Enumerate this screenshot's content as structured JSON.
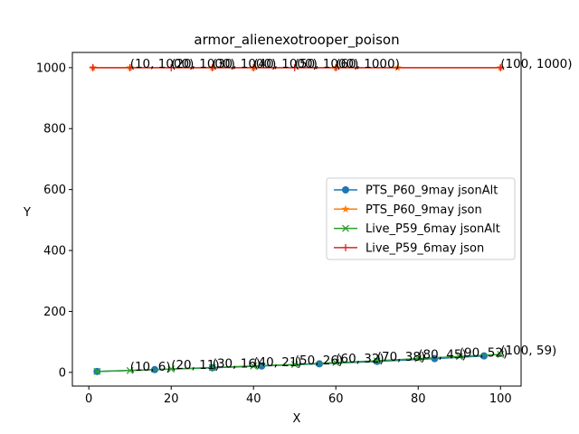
{
  "chart_data": {
    "type": "line",
    "title": "armor_alienexotrooper_poison",
    "xlabel": "X",
    "ylabel": "Y",
    "xlim": [
      -4,
      105
    ],
    "ylim": [
      -45,
      1050
    ],
    "xticks": [
      0,
      20,
      40,
      60,
      80,
      100
    ],
    "yticks": [
      0,
      200,
      400,
      600,
      800,
      1000
    ],
    "grid": false,
    "legend_position": "center-right",
    "series": [
      {
        "name": "PTS_P60_9may jsonAlt",
        "color": "#1f77b4",
        "marker": "circle",
        "points": [
          [
            2,
            3
          ],
          [
            16,
            9
          ],
          [
            30,
            15
          ],
          [
            42,
            21
          ],
          [
            56,
            28
          ],
          [
            70,
            36
          ],
          [
            84,
            45
          ],
          [
            96,
            54
          ]
        ]
      },
      {
        "name": "PTS_P60_9may json",
        "color": "#ff7f0e",
        "marker": "star",
        "points": [
          [
            1,
            1000
          ],
          [
            10,
            1000
          ],
          [
            30,
            1000
          ],
          [
            40,
            1000
          ],
          [
            60,
            1000
          ],
          [
            75,
            1000
          ],
          [
            100,
            1000
          ]
        ]
      },
      {
        "name": "Live_P59_6may jsonAlt",
        "color": "#2ca02c",
        "marker": "x",
        "points": [
          [
            2,
            3
          ],
          [
            10,
            6
          ],
          [
            20,
            11
          ],
          [
            30,
            16
          ],
          [
            40,
            21
          ],
          [
            50,
            26
          ],
          [
            60,
            32
          ],
          [
            70,
            38
          ],
          [
            80,
            45
          ],
          [
            90,
            52
          ],
          [
            100,
            59
          ]
        ]
      },
      {
        "name": "Live_P59_6may json",
        "color": "#d62728",
        "marker": "plus",
        "points": [
          [
            1,
            1000
          ],
          [
            10,
            1000
          ],
          [
            20,
            1000
          ],
          [
            30,
            1000
          ],
          [
            40,
            1000
          ],
          [
            50,
            1000
          ],
          [
            60,
            1000
          ],
          [
            100,
            1000
          ]
        ]
      }
    ],
    "annotations": [
      {
        "text": "(10, 1000)",
        "x": 10,
        "y": 1000
      },
      {
        "text": "(20, 1000)",
        "x": 20,
        "y": 1000
      },
      {
        "text": "(30, 1000)",
        "x": 30,
        "y": 1000
      },
      {
        "text": "(40, 1000)",
        "x": 40,
        "y": 1000
      },
      {
        "text": "(50, 1000)",
        "x": 50,
        "y": 1000
      },
      {
        "text": "(60, 1000)",
        "x": 60,
        "y": 1000
      },
      {
        "text": "(100, 1000)",
        "x": 100,
        "y": 1000
      },
      {
        "text": "(10, 6)",
        "x": 10,
        "y": 6
      },
      {
        "text": "(20, 11)",
        "x": 20,
        "y": 11
      },
      {
        "text": "(30, 16)",
        "x": 30,
        "y": 16
      },
      {
        "text": "(40, 21)",
        "x": 40,
        "y": 21
      },
      {
        "text": "(50, 26)",
        "x": 50,
        "y": 26
      },
      {
        "text": "(60, 32)",
        "x": 60,
        "y": 32
      },
      {
        "text": "(70, 38)",
        "x": 70,
        "y": 38
      },
      {
        "text": "(80, 45)",
        "x": 80,
        "y": 45
      },
      {
        "text": "(90, 52)",
        "x": 90,
        "y": 52
      },
      {
        "text": "(100, 59)",
        "x": 100,
        "y": 59
      }
    ]
  }
}
